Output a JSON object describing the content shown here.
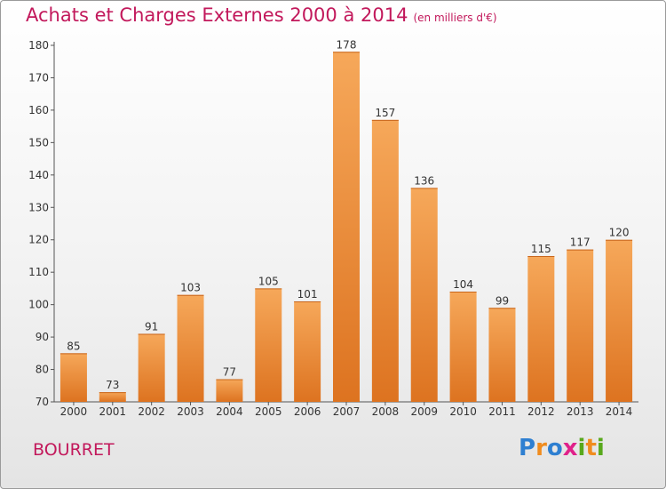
{
  "title": "Achats et Charges Externes 2000 à 2014",
  "unit": "(en milliers d'€)",
  "location": "BOURRET",
  "brand": {
    "letters": [
      "P",
      "r",
      "o",
      "x",
      "i",
      "t",
      "i"
    ],
    "colors": [
      "#2e7fd1",
      "#f08c1e",
      "#2e7fd1",
      "#e0218a",
      "#58a81c",
      "#f08c1e",
      "#58a81c"
    ]
  },
  "colors": {
    "bar_light": "#f6a85a",
    "bar_dark": "#dd7320",
    "accent": "#c2185b"
  },
  "chart_data": {
    "type": "bar",
    "title": "Achats et Charges Externes 2000 à 2014",
    "xlabel": "",
    "ylabel": "",
    "categories": [
      "2000",
      "2001",
      "2002",
      "2003",
      "2004",
      "2005",
      "2006",
      "2007",
      "2008",
      "2009",
      "2010",
      "2011",
      "2012",
      "2013",
      "2014"
    ],
    "values": [
      85,
      73,
      91,
      103,
      77,
      105,
      101,
      178,
      157,
      136,
      104,
      99,
      115,
      117,
      120
    ],
    "ylim": [
      70,
      180
    ],
    "yticks": [
      70,
      80,
      90,
      100,
      110,
      120,
      130,
      140,
      150,
      160,
      170,
      180
    ],
    "grid": false,
    "legend": "none"
  }
}
